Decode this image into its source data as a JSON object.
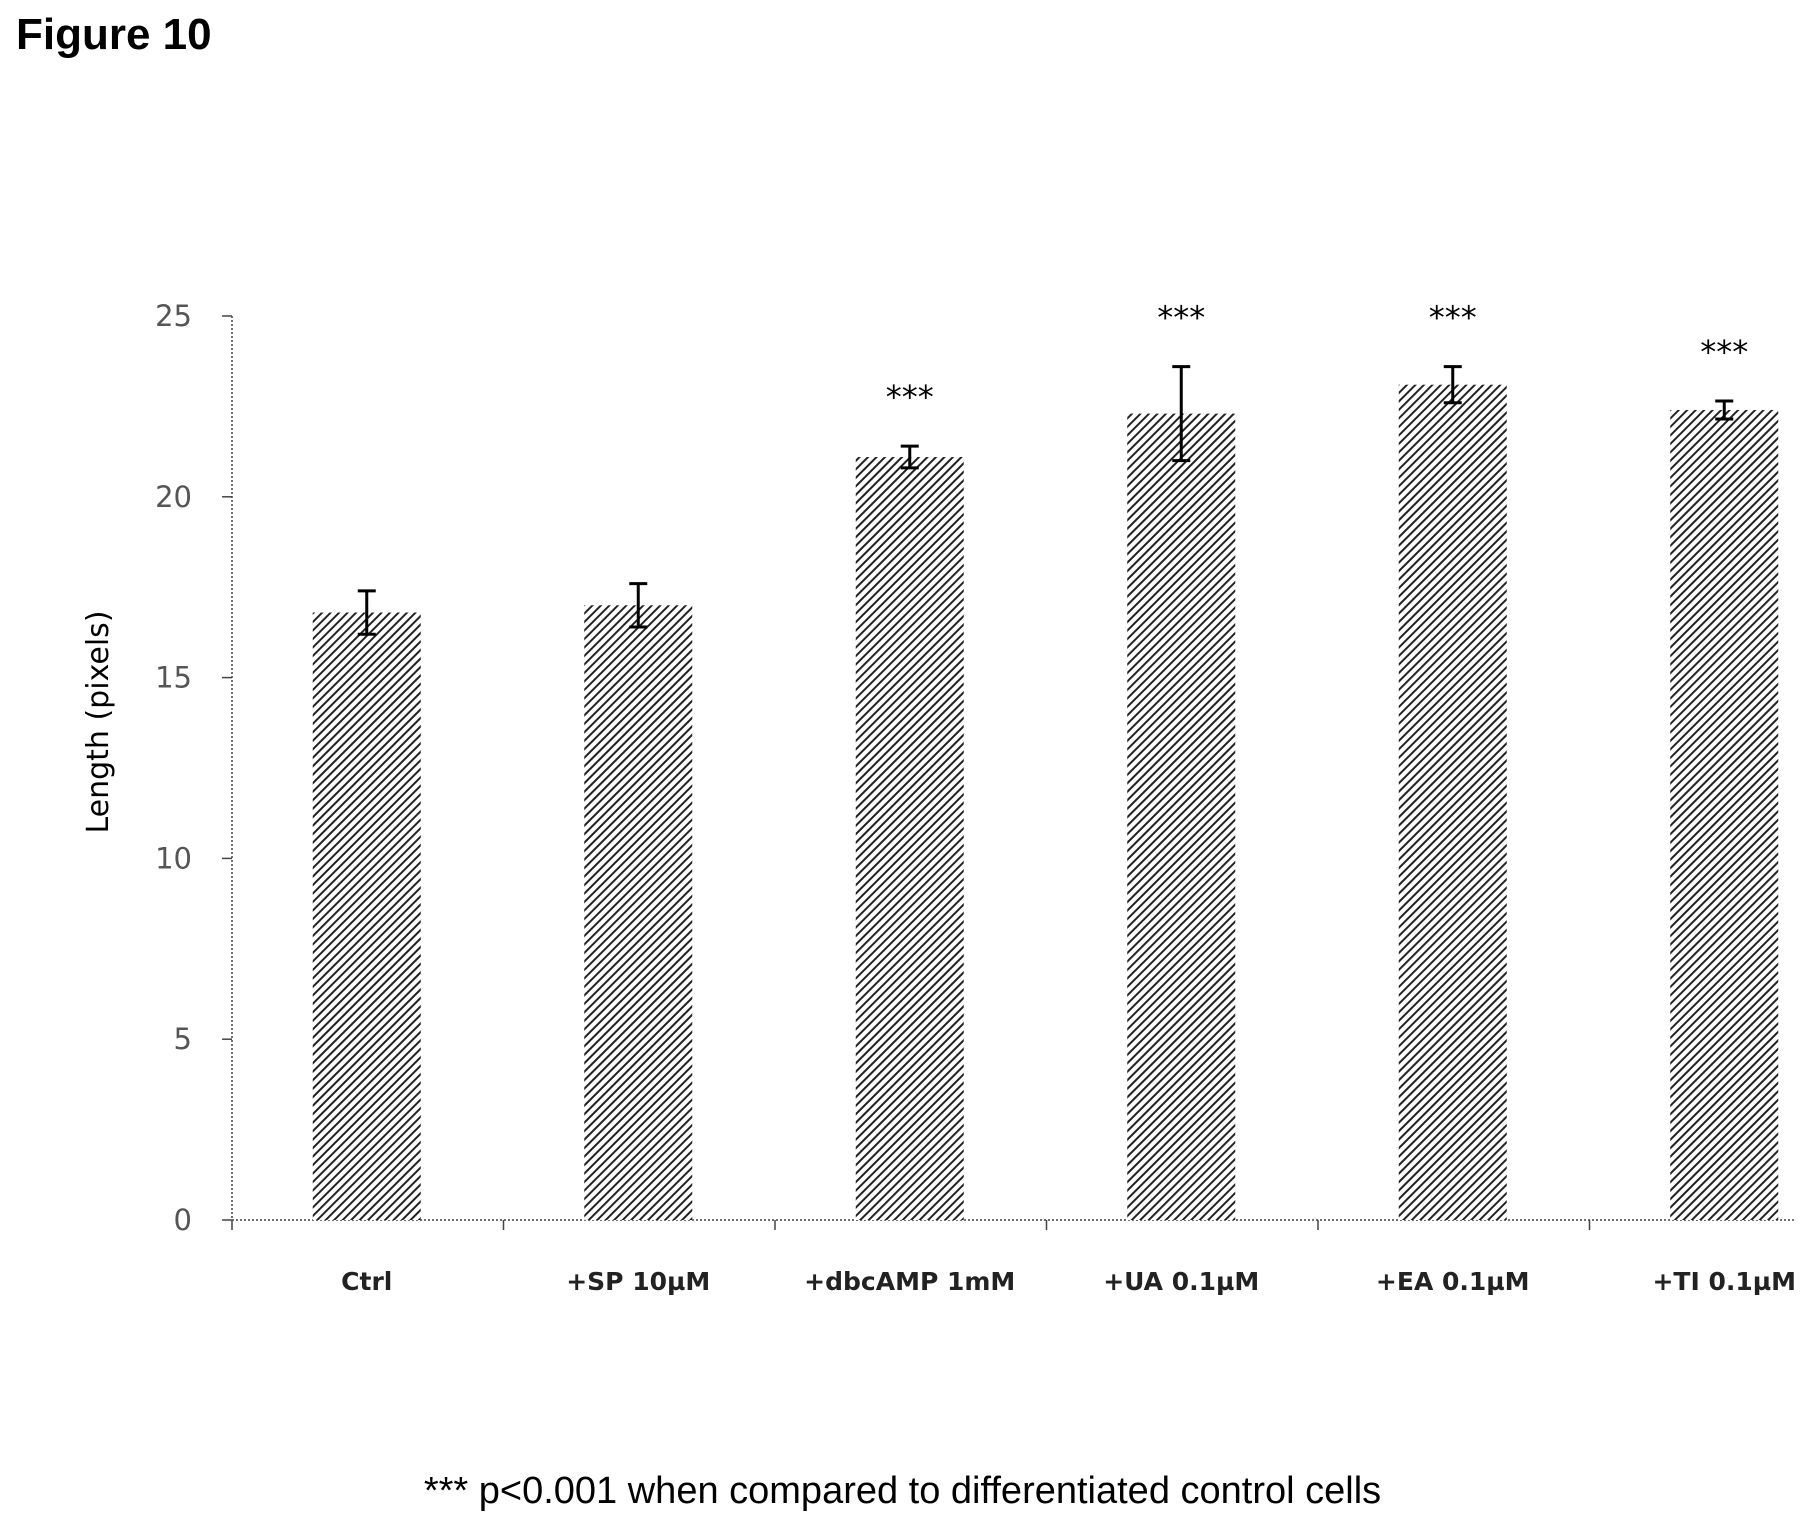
{
  "figure_title": "Figure 10",
  "footnote": "*** p<0.001 when compared to differentiated control cells",
  "colors": {
    "bar_hatch": "#222222",
    "axis": "#444444"
  },
  "chart_data": {
    "type": "bar",
    "title": "",
    "xlabel": "",
    "ylabel": "Length (pixels)",
    "ylim": [
      0,
      25
    ],
    "yticks": [
      0,
      5,
      10,
      15,
      20,
      25
    ],
    "categories": [
      "Ctrl",
      "+SP 10µM",
      "+dbcAMP 1mM",
      "+UA 0.1µM",
      "+EA 0.1µM",
      "+TI 0.1µM"
    ],
    "values": [
      16.8,
      17.0,
      21.1,
      22.3,
      23.1,
      22.4
    ],
    "error": [
      0.6,
      0.6,
      0.3,
      1.3,
      0.5,
      0.25
    ],
    "significance": [
      "",
      "",
      "***",
      "***",
      "***",
      "***"
    ],
    "grid": false,
    "bar_fill": "diagonal hatch"
  }
}
